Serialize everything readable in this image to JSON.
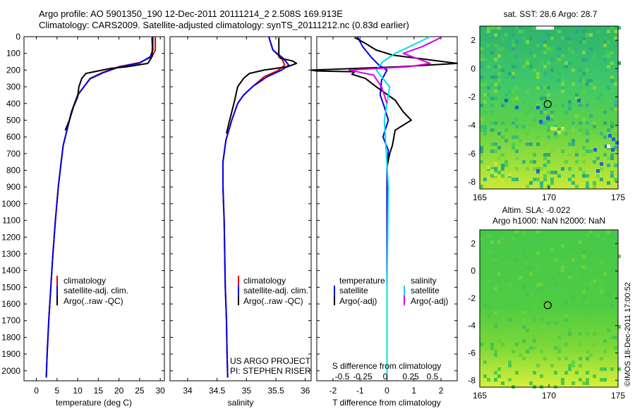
{
  "header": {
    "line1": "Argo profile: AO 5901350_190 12-Dec-2011 20111214_2 2.508S 169.913E",
    "line2": "Climatology: CARS2009. Satellite-adjusted climatology: synTS_20111212.nc (0.83d earlier)"
  },
  "side_stamp": "©IMOS 18-Dec-2011 17:00:52",
  "project_note": {
    "line1": "US ARGO PROJECT",
    "line2": "PI: STEPHEN RISER"
  },
  "colors": {
    "climatology": "#e00000",
    "satellite": "#0000e0",
    "argo": "#000000",
    "sat_salinity": "#00e0e0",
    "argo_salinity": "#e000e0"
  },
  "chart_data": [
    {
      "type": "line",
      "xlabel": "temperature (deg C)",
      "ylabel": "",
      "xlim": [
        -3,
        31
      ],
      "ylim": [
        2060,
        0
      ],
      "xticks": [
        0,
        5,
        10,
        15,
        20,
        25,
        30
      ],
      "yticks": [
        0,
        100,
        200,
        300,
        400,
        500,
        600,
        700,
        800,
        900,
        1000,
        1100,
        1200,
        1300,
        1400,
        1500,
        1600,
        1700,
        1800,
        1900,
        2000
      ],
      "legend": [
        "climatology",
        "satellite-adj. clim.",
        "Argo(..raw -QC)"
      ],
      "series": [
        {
          "name": "climatology",
          "color": "#e00000",
          "points": [
            [
              28.8,
              0
            ],
            [
              28.8,
              80
            ],
            [
              28.0,
              120
            ],
            [
              25,
              155
            ],
            [
              20,
              180
            ],
            [
              16,
              215
            ],
            [
              13,
              250
            ],
            [
              11.5,
              300
            ],
            [
              10,
              350
            ],
            [
              8.5,
              450
            ],
            [
              7.5,
              550
            ],
            [
              6.5,
              650
            ],
            [
              6,
              750
            ],
            [
              5.3,
              900
            ],
            [
              4.6,
              1100
            ],
            [
              4,
              1300
            ],
            [
              3.5,
              1500
            ],
            [
              3,
              1700
            ],
            [
              2.6,
              1900
            ],
            [
              2.4,
              2040
            ]
          ]
        },
        {
          "name": "satellite-adj. clim.",
          "color": "#0000e0",
          "points": [
            [
              28.2,
              0
            ],
            [
              28.2,
              80
            ],
            [
              27.6,
              120
            ],
            [
              25,
              158
            ],
            [
              20,
              182
            ],
            [
              16,
              218
            ],
            [
              13,
              253
            ],
            [
              11.5,
              300
            ],
            [
              10,
              350
            ],
            [
              8.5,
              450
            ],
            [
              7.5,
              550
            ],
            [
              6.5,
              650
            ],
            [
              6,
              750
            ],
            [
              5.3,
              900
            ],
            [
              4.6,
              1100
            ],
            [
              4,
              1300
            ],
            [
              3.5,
              1500
            ],
            [
              3,
              1700
            ],
            [
              2.6,
              1900
            ],
            [
              2.4,
              2040
            ]
          ]
        },
        {
          "name": "Argo(..raw -QC)",
          "color": "#000000",
          "points": [
            [
              28.0,
              5
            ],
            [
              28.1,
              60
            ],
            [
              28.0,
              120
            ],
            [
              27,
              160
            ],
            [
              22,
              180
            ],
            [
              18,
              190
            ],
            [
              12,
              220
            ],
            [
              11,
              250
            ],
            [
              10.3,
              300
            ],
            [
              10,
              360
            ],
            [
              9,
              420
            ],
            [
              8,
              500
            ],
            [
              7,
              560
            ]
          ]
        }
      ]
    },
    {
      "type": "line",
      "xlabel": "salinity",
      "ylabel": "",
      "xlim": [
        33.7,
        36.1
      ],
      "ylim": [
        2060,
        0
      ],
      "xticks": [
        34,
        34.5,
        35,
        35.5,
        36
      ],
      "legend": [
        "climatology",
        "satellite-adj. clim.",
        "Argo(..raw -QC)"
      ],
      "series": [
        {
          "name": "climatology",
          "color": "#e00000",
          "points": [
            [
              35.38,
              0
            ],
            [
              35.45,
              80
            ],
            [
              35.6,
              130
            ],
            [
              35.65,
              170
            ],
            [
              35.55,
              200
            ],
            [
              35.3,
              240
            ],
            [
              35.1,
              300
            ],
            [
              34.95,
              350
            ],
            [
              34.85,
              400
            ],
            [
              34.75,
              500
            ],
            [
              34.65,
              620
            ],
            [
              34.6,
              750
            ],
            [
              34.6,
              900
            ],
            [
              34.62,
              1100
            ],
            [
              34.63,
              1300
            ],
            [
              34.64,
              1500
            ],
            [
              34.66,
              1700
            ],
            [
              34.67,
              1900
            ],
            [
              34.68,
              2040
            ]
          ]
        },
        {
          "name": "satellite-adj. clim.",
          "color": "#0000e0",
          "points": [
            [
              35.38,
              0
            ],
            [
              35.45,
              80
            ],
            [
              35.62,
              128
            ],
            [
              35.72,
              170
            ],
            [
              35.6,
              200
            ],
            [
              35.35,
              240
            ],
            [
              35.1,
              300
            ],
            [
              34.95,
              350
            ],
            [
              34.85,
              400
            ],
            [
              34.75,
              500
            ],
            [
              34.65,
              620
            ],
            [
              34.6,
              750
            ],
            [
              34.6,
              900
            ],
            [
              34.62,
              1100
            ],
            [
              34.63,
              1300
            ],
            [
              34.64,
              1500
            ],
            [
              34.66,
              1700
            ],
            [
              34.67,
              1900
            ],
            [
              34.68,
              2040
            ]
          ]
        },
        {
          "name": "Argo(..raw -QC)",
          "color": "#000000",
          "points": [
            [
              35.55,
              5
            ],
            [
              35.55,
              120
            ],
            [
              35.58,
              130
            ],
            [
              35.78,
              145
            ],
            [
              35.85,
              160
            ],
            [
              35.7,
              180
            ],
            [
              35.3,
              200
            ],
            [
              35.05,
              220
            ],
            [
              34.95,
              250
            ],
            [
              34.85,
              300
            ],
            [
              34.8,
              380
            ],
            [
              34.75,
              450
            ],
            [
              34.7,
              520
            ],
            [
              34.66,
              580
            ]
          ]
        }
      ]
    },
    {
      "type": "line",
      "xlabel": "T difference from climatology",
      "ylabel": "",
      "xlim": [
        -2.6,
        2.6
      ],
      "ylim": [
        2060,
        0
      ],
      "xticks": [
        -2,
        -1,
        0,
        1,
        2
      ],
      "top_axis_label": "S difference from climatology",
      "top_xticks": [
        "-0.5",
        "-0.25",
        "0",
        "0.25",
        "0.5"
      ],
      "legend_titles": [
        "temperature",
        "salinity"
      ],
      "legend": [
        "satellite",
        "Argo(-adj)",
        "satellite",
        "Argo(-adj)"
      ],
      "series": [
        {
          "name": "temperature satellite",
          "color": "#0000e0",
          "points": [
            [
              -1.1,
              0
            ],
            [
              -0.9,
              60
            ],
            [
              -0.6,
              120
            ],
            [
              -0.3,
              170
            ],
            [
              0,
              200
            ],
            [
              -0.2,
              260
            ],
            [
              -0.25,
              350
            ],
            [
              -0.1,
              420
            ],
            [
              0.05,
              500
            ],
            [
              -0.15,
              600
            ],
            [
              0.05,
              680
            ],
            [
              0,
              800
            ],
            [
              0,
              2040
            ]
          ]
        },
        {
          "name": "temperature Argo(-adj)",
          "color": "#000000",
          "points": [
            [
              -1.2,
              5
            ],
            [
              -0.8,
              40
            ],
            [
              -0.4,
              80
            ],
            [
              0.2,
              110
            ],
            [
              2.6,
              160
            ],
            [
              0.5,
              180
            ],
            [
              -2.8,
              200
            ],
            [
              -2.6,
              205
            ],
            [
              -1.2,
              210
            ],
            [
              -1.3,
              225
            ],
            [
              -0.8,
              250
            ],
            [
              -0.4,
              300
            ],
            [
              0.3,
              380
            ],
            [
              0.6,
              450
            ],
            [
              0.9,
              500
            ],
            [
              0.3,
              560
            ],
            [
              0.2,
              650
            ],
            [
              0.1,
              700
            ],
            [
              0,
              780
            ]
          ]
        },
        {
          "name": "salinity satellite",
          "color": "#00e0e0",
          "points": [
            [
              1.6,
              0
            ],
            [
              0.7,
              70
            ],
            [
              0.3,
              100
            ],
            [
              -0.15,
              150
            ],
            [
              -0.4,
              200
            ],
            [
              0.1,
              300
            ],
            [
              -0.1,
              500
            ],
            [
              0.05,
              900
            ],
            [
              0,
              1500
            ],
            [
              0,
              2040
            ]
          ]
        },
        {
          "name": "salinity Argo(-adj)",
          "color": "#e000e0",
          "points": [
            [
              2.0,
              5
            ],
            [
              1.3,
              60
            ],
            [
              0.6,
              100
            ],
            [
              1.6,
              160
            ],
            [
              0.8,
              180
            ],
            [
              -1.4,
              200
            ],
            [
              -0.5,
              230
            ],
            [
              -0.2,
              300
            ],
            [
              0,
              400
            ]
          ]
        }
      ]
    },
    {
      "type": "heatmap",
      "title": "sat. SST: 28.6  Argo: 28.7",
      "xlim": [
        165,
        175
      ],
      "ylim": [
        -8.5,
        3
      ],
      "xticks": [
        165,
        170,
        175
      ],
      "yticks": [
        -8,
        -6,
        -4,
        -2,
        0,
        2
      ],
      "marker": [
        169.913,
        -2.508
      ]
    },
    {
      "type": "heatmap",
      "title": "Altim. SLA: -0.022",
      "subtitle": "Argo h1000: NaN h2000: NaN",
      "xlim": [
        165,
        175
      ],
      "ylim": [
        -8.5,
        3
      ],
      "xticks": [
        165,
        170,
        175
      ],
      "yticks": [
        -8,
        -6,
        -4,
        -2,
        0,
        2
      ],
      "marker": [
        169.913,
        -2.508
      ]
    }
  ]
}
